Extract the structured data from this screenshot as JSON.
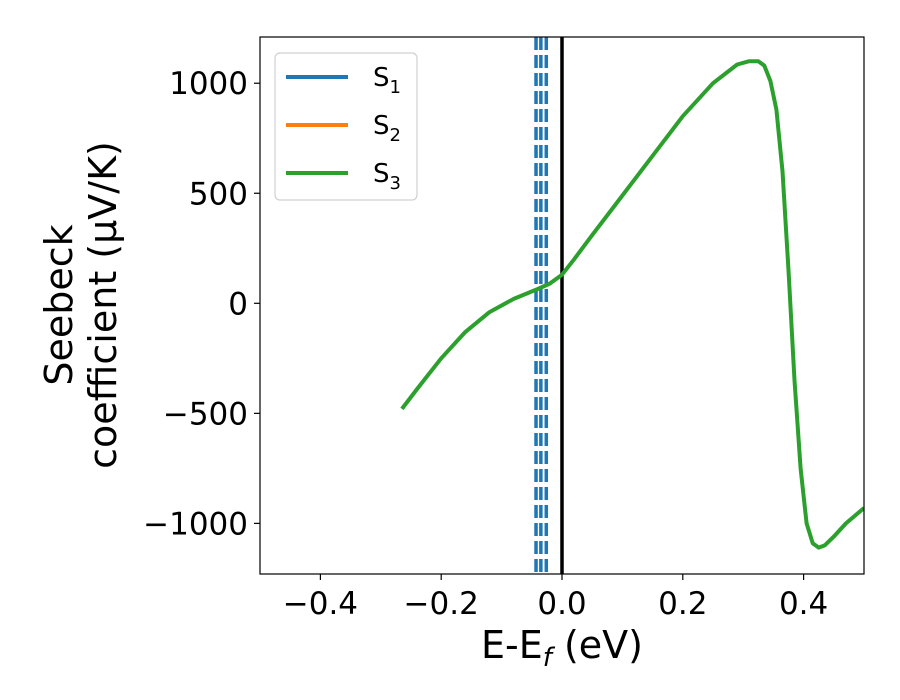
{
  "chart_data": {
    "type": "line",
    "title": "",
    "xlabel": "E-E",
    "xlabel_sub": "f",
    "xlabel_tail": " (eV)",
    "ylabel_line1": "Seebeck",
    "ylabel_line2": "coefficient  (μV/K)",
    "xlim": [
      -0.5,
      0.5
    ],
    "ylim": [
      -1230,
      1210
    ],
    "xticks": [
      -0.4,
      -0.2,
      0.0,
      0.2,
      0.4
    ],
    "xtick_labels": [
      "−0.4",
      "−0.2",
      "0.0",
      "0.2",
      "0.4"
    ],
    "yticks": [
      -1000,
      -500,
      0,
      500,
      1000
    ],
    "ytick_labels": [
      "−1000",
      "−500",
      "0",
      "500",
      "1000"
    ],
    "grid": false,
    "legend_position": "upper-left",
    "series": [
      {
        "name": "S",
        "subscript": "1",
        "color": "#1f77b4",
        "x": [],
        "y": []
      },
      {
        "name": "S",
        "subscript": "2",
        "color": "#ff7f0e",
        "x": [],
        "y": []
      },
      {
        "name": "S",
        "subscript": "3",
        "color": "#2ca02c",
        "x": [
          -0.265,
          -0.24,
          -0.2,
          -0.16,
          -0.12,
          -0.08,
          -0.04,
          -0.02,
          0.0,
          0.02,
          0.05,
          0.1,
          0.15,
          0.2,
          0.25,
          0.29,
          0.31,
          0.325,
          0.335,
          0.345,
          0.355,
          0.365,
          0.375,
          0.385,
          0.395,
          0.405,
          0.415,
          0.425,
          0.435,
          0.45,
          0.47,
          0.5
        ],
        "y": [
          -480,
          -390,
          -250,
          -130,
          -40,
          20,
          65,
          90,
          130,
          200,
          310,
          490,
          670,
          850,
          1000,
          1085,
          1100,
          1100,
          1080,
          1010,
          880,
          600,
          150,
          -350,
          -750,
          -1000,
          -1090,
          -1110,
          -1100,
          -1060,
          -1000,
          -930
        ]
      }
    ],
    "vertical_lines": [
      {
        "x": -0.043,
        "color": "#1f77b4",
        "style": "dashed"
      },
      {
        "x": -0.035,
        "color": "#1f77b4",
        "style": "dashed"
      },
      {
        "x": -0.026,
        "color": "#1f77b4",
        "style": "dashed"
      },
      {
        "x": 0.0,
        "color": "#000000",
        "style": "solid"
      }
    ]
  }
}
